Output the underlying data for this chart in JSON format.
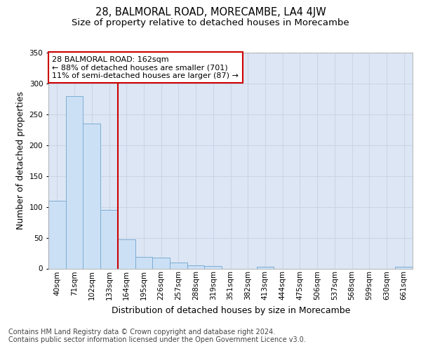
{
  "title": "28, BALMORAL ROAD, MORECAMBE, LA4 4JW",
  "subtitle": "Size of property relative to detached houses in Morecambe",
  "xlabel": "Distribution of detached houses by size in Morecambe",
  "ylabel": "Number of detached properties",
  "bar_labels": [
    "40sqm",
    "71sqm",
    "102sqm",
    "133sqm",
    "164sqm",
    "195sqm",
    "226sqm",
    "257sqm",
    "288sqm",
    "319sqm",
    "351sqm",
    "382sqm",
    "413sqm",
    "444sqm",
    "475sqm",
    "506sqm",
    "537sqm",
    "568sqm",
    "599sqm",
    "630sqm",
    "661sqm"
  ],
  "bar_values": [
    110,
    280,
    235,
    95,
    47,
    19,
    18,
    10,
    5,
    4,
    0,
    0,
    3,
    0,
    0,
    0,
    0,
    0,
    0,
    0,
    3
  ],
  "bar_color": "#cce0f5",
  "bar_edge_color": "#7badd4",
  "vline_x_index": 4,
  "vline_color": "#cc0000",
  "annotation_box_text": "28 BALMORAL ROAD: 162sqm\n← 88% of detached houses are smaller (701)\n11% of semi-detached houses are larger (87) →",
  "annotation_box_color": "#cc0000",
  "ylim": [
    0,
    350
  ],
  "yticks": [
    0,
    50,
    100,
    150,
    200,
    250,
    300,
    350
  ],
  "grid_color": "#ccd5e8",
  "background_color": "#dde6f4",
  "footer_line1": "Contains HM Land Registry data © Crown copyright and database right 2024.",
  "footer_line2": "Contains public sector information licensed under the Open Government Licence v3.0.",
  "title_fontsize": 10.5,
  "subtitle_fontsize": 9.5,
  "annotation_fontsize": 8.0,
  "axis_label_fontsize": 9,
  "tick_fontsize": 7.5,
  "footer_fontsize": 7
}
